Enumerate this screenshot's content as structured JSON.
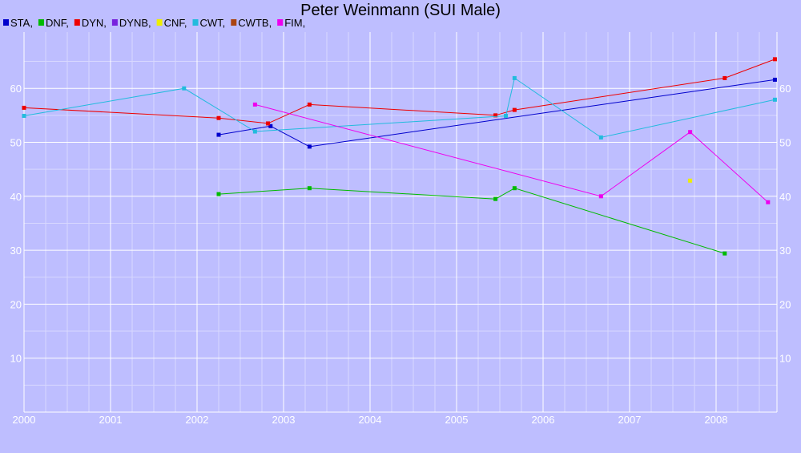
{
  "chart_data": {
    "type": "line",
    "title": "Peter Weinmann (SUI Male)",
    "xlabel": "",
    "ylabel": "",
    "xlim": [
      2000.0,
      2008.7
    ],
    "ylim": [
      0,
      70
    ],
    "x_ticks": [
      "2000",
      "2001",
      "2002",
      "2003",
      "2004",
      "2005",
      "2006",
      "2007",
      "2008"
    ],
    "y_ticks": [
      "10",
      "20",
      "30",
      "40",
      "50",
      "60"
    ],
    "grid": true,
    "legend_position": "top-left",
    "series": [
      {
        "name": "STA,",
        "color": "#0000cc",
        "points": [
          [
            2002.25,
            51.4
          ],
          [
            2002.85,
            53.0
          ],
          [
            2003.3,
            49.2
          ],
          [
            2008.68,
            61.6
          ]
        ]
      },
      {
        "name": "DNF,",
        "color": "#00bb00",
        "points": [
          [
            2002.25,
            40.4
          ],
          [
            2003.3,
            41.5
          ],
          [
            2005.45,
            39.5
          ],
          [
            2005.67,
            41.5
          ],
          [
            2008.1,
            29.4
          ]
        ]
      },
      {
        "name": "DYN,",
        "color": "#ee0000",
        "points": [
          [
            2000.0,
            56.4
          ],
          [
            2002.25,
            54.5
          ],
          [
            2002.82,
            53.5
          ],
          [
            2003.3,
            57.0
          ],
          [
            2005.45,
            55.0
          ],
          [
            2005.67,
            56.0
          ],
          [
            2008.1,
            61.9
          ],
          [
            2008.68,
            65.4
          ]
        ]
      },
      {
        "name": "DYNB,",
        "color": "#7722dd",
        "points": []
      },
      {
        "name": "CNF,",
        "color": "#eeee00",
        "points": [
          [
            2007.7,
            42.9
          ]
        ],
        "connect": false
      },
      {
        "name": "CWT,",
        "color": "#22bbdd",
        "points": [
          [
            2000.0,
            54.9
          ],
          [
            2001.85,
            60.0
          ],
          [
            2002.67,
            52.0
          ],
          [
            2005.57,
            54.9
          ],
          [
            2005.67,
            61.9
          ],
          [
            2006.67,
            50.9
          ],
          [
            2008.68,
            57.9
          ]
        ]
      },
      {
        "name": "CWTB,",
        "color": "#aa4411",
        "points": []
      },
      {
        "name": "FIM,",
        "color": "#ee00ee",
        "points": [
          [
            2002.67,
            57.0
          ],
          [
            2006.67,
            40.0
          ],
          [
            2007.7,
            51.9
          ],
          [
            2008.6,
            38.9
          ]
        ]
      }
    ]
  }
}
